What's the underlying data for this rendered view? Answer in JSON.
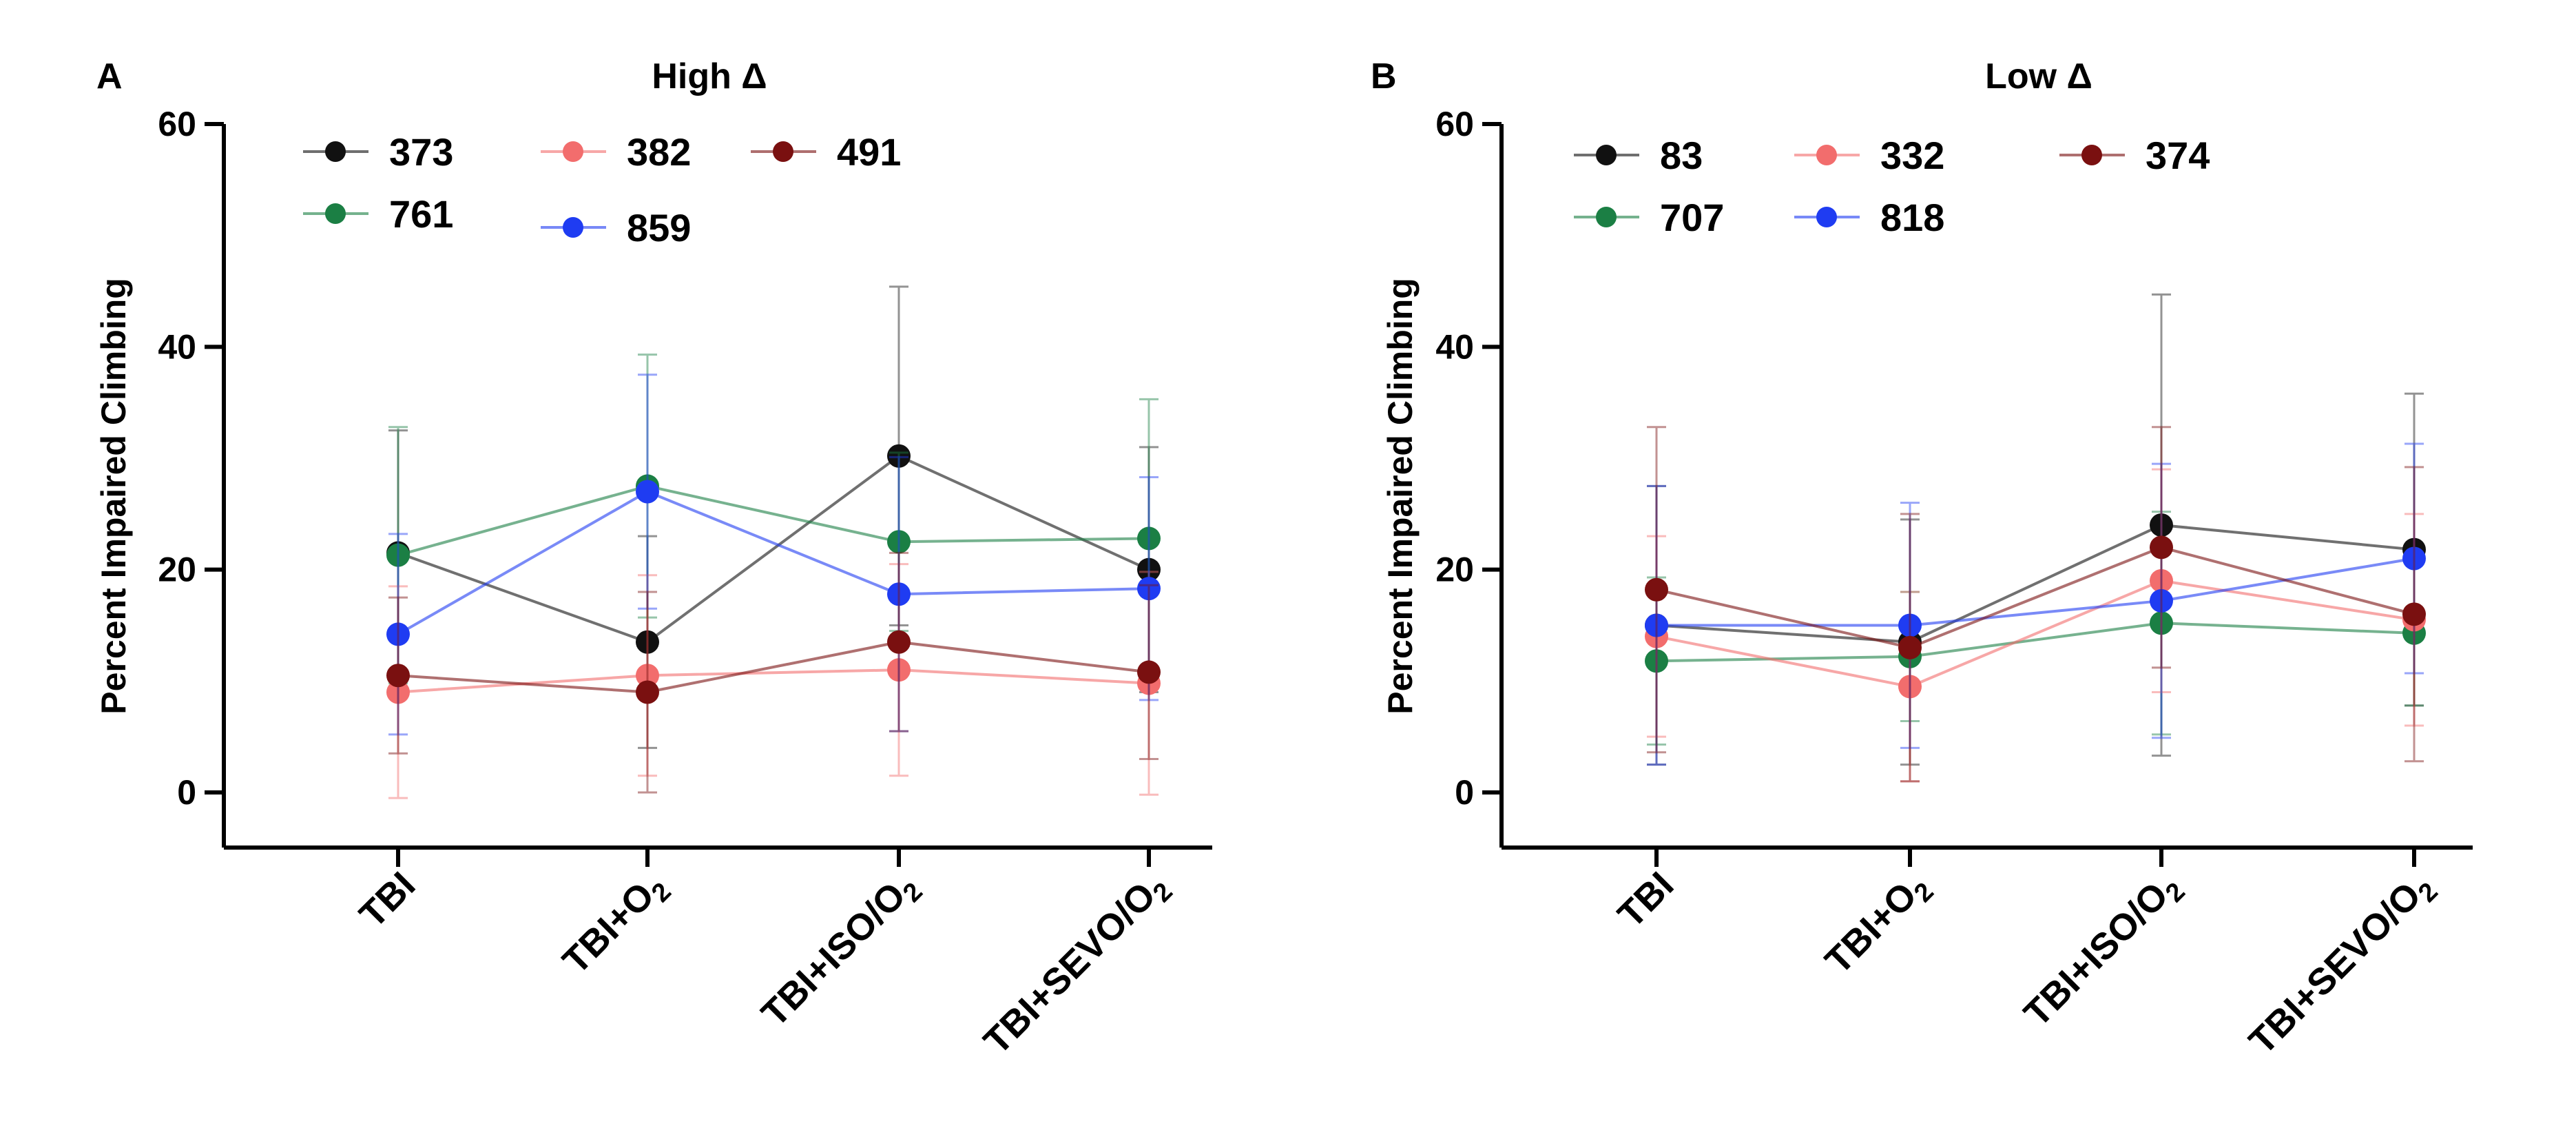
{
  "colors": {
    "373": "#111111",
    "761": "#1b7f44",
    "382": "#f26d6d",
    "859": "#1f3cf2",
    "491": "#7a1010",
    "83": "#111111",
    "707": "#1b7f44",
    "332": "#f26d6d",
    "818": "#1f3cf2",
    "374": "#7a1010"
  },
  "chart_data": [
    {
      "type": "line",
      "panel": "A",
      "title": "High Δ",
      "ylabel": "Percent Impaired Climbing",
      "xlabel": "",
      "ylim": [
        0,
        60
      ],
      "yticks": [
        "0",
        "20",
        "40",
        "60"
      ],
      "categories": [
        "TBI",
        "TBI+O",
        "TBI+ISO/O",
        "TBI+SEVO/O"
      ],
      "category_subscripts": [
        "",
        "2",
        "2",
        "2"
      ],
      "series": [
        {
          "name": "373",
          "values": [
            21.5,
            13.5,
            30.2,
            20.0
          ],
          "errors": [
            11.0,
            9.5,
            15.2,
            11.0
          ]
        },
        {
          "name": "761",
          "values": [
            21.3,
            27.5,
            22.5,
            22.8
          ],
          "errors": [
            11.5,
            11.8,
            8.0,
            12.5
          ]
        },
        {
          "name": "382",
          "values": [
            9.0,
            10.5,
            11.0,
            9.8
          ],
          "errors": [
            9.5,
            9.0,
            9.5,
            10.0
          ]
        },
        {
          "name": "859",
          "values": [
            14.2,
            27.0,
            17.8,
            18.3
          ],
          "errors": [
            9.0,
            10.5,
            12.3,
            10.0
          ]
        },
        {
          "name": "491",
          "values": [
            10.5,
            9.0,
            13.5,
            10.8
          ],
          "errors": [
            7.0,
            9.0,
            8.0,
            7.8
          ]
        }
      ]
    },
    {
      "type": "line",
      "panel": "B",
      "title": "Low Δ",
      "ylabel": "Percent Impaired Climbing",
      "xlabel": "",
      "ylim": [
        0,
        60
      ],
      "yticks": [
        "0",
        "20",
        "40",
        "60"
      ],
      "categories": [
        "TBI",
        "TBI+O",
        "TBI+ISO/O",
        "TBI+SEVO/O"
      ],
      "category_subscripts": [
        "",
        "2",
        "2",
        "2"
      ],
      "series": [
        {
          "name": "83",
          "values": [
            15.0,
            13.5,
            24.0,
            21.8
          ],
          "errors": [
            12.5,
            11.0,
            20.7,
            14.0
          ]
        },
        {
          "name": "707",
          "values": [
            11.8,
            12.2,
            15.2,
            14.3
          ],
          "errors": [
            7.5,
            5.8,
            10.0,
            6.5
          ]
        },
        {
          "name": "332",
          "values": [
            14.0,
            9.5,
            19.0,
            15.5
          ],
          "errors": [
            9.0,
            8.5,
            10.0,
            9.5
          ]
        },
        {
          "name": "818",
          "values": [
            15.0,
            15.0,
            17.2,
            21.0
          ],
          "errors": [
            12.5,
            11.0,
            12.3,
            10.3
          ]
        },
        {
          "name": "374",
          "values": [
            18.2,
            13.0,
            22.0,
            16.0
          ],
          "errors": [
            14.6,
            12.0,
            10.8,
            13.2
          ]
        }
      ]
    }
  ]
}
